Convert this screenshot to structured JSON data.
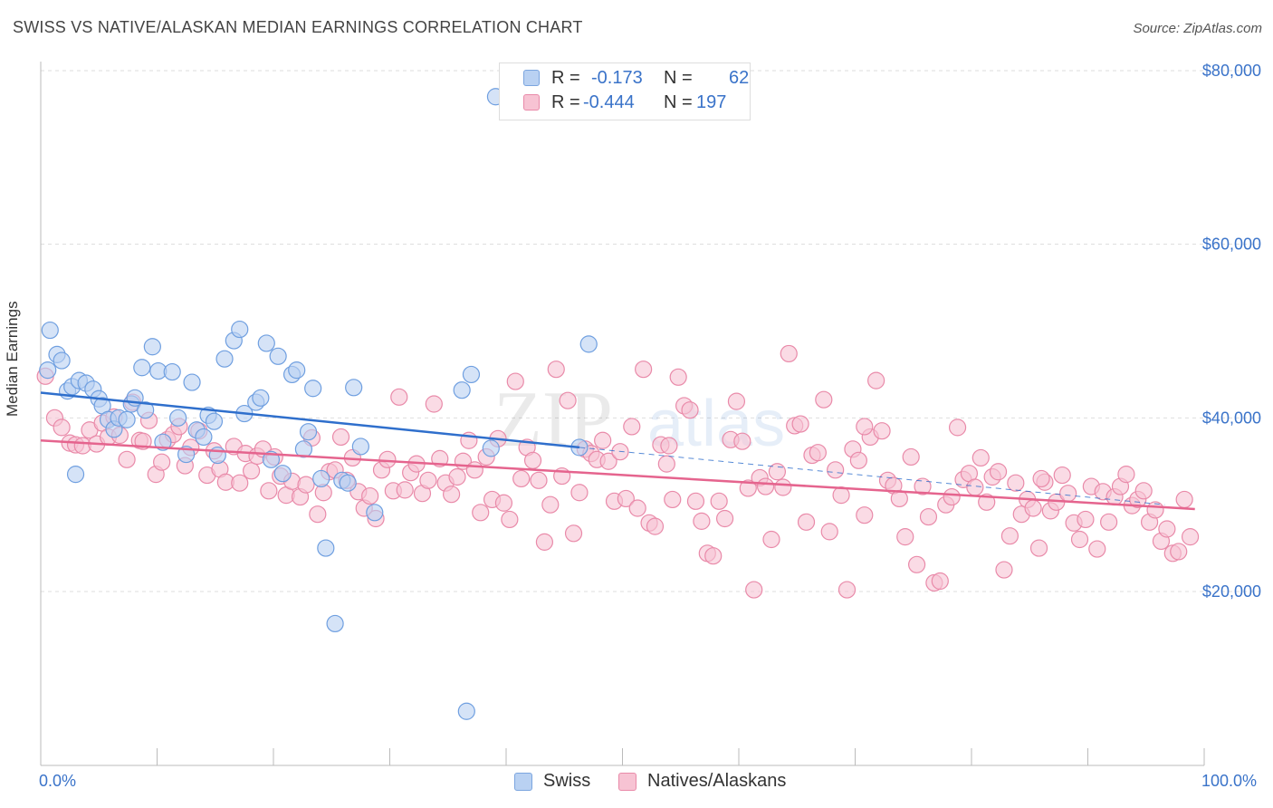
{
  "header": {
    "title": "SWISS VS NATIVE/ALASKAN MEDIAN EARNINGS CORRELATION CHART",
    "source": "Source: ZipAtlas.com"
  },
  "legend": {
    "swiss": {
      "r_label": "R =",
      "r_value": "-0.173",
      "n_label": "N =",
      "n_value": "62"
    },
    "natives": {
      "r_label": "R =",
      "r_value": "-0.444",
      "n_label": "N =",
      "n_value": "197"
    }
  },
  "bottom_legend": {
    "swiss": "Swiss",
    "natives": "Natives/Alaskans"
  },
  "colors": {
    "swiss_fill": "#b9d1f2",
    "swiss_stroke": "#6f9fe0",
    "swiss_line": "#2f6fcc",
    "natives_fill": "#f7c3d3",
    "natives_stroke": "#e98aa9",
    "natives_line": "#e5648e",
    "axis_label": "#3a73c9",
    "grid": "#dddddd"
  },
  "watermark": {
    "zip": "ZIP",
    "atlas": "atlas"
  },
  "chart_data": {
    "type": "scatter",
    "title": "SWISS VS NATIVE/ALASKAN MEDIAN EARNINGS CORRELATION CHART",
    "xlabel": "",
    "ylabel": "Median Earnings",
    "xlim": [
      0,
      100
    ],
    "ylim": [
      2000,
      82000
    ],
    "x_tick_labels": [
      "0.0%",
      "100.0%"
    ],
    "y_ticks": [
      20000,
      40000,
      60000,
      80000
    ],
    "y_tick_labels": [
      "$20,000",
      "$40,000",
      "$60,000",
      "$80,000"
    ],
    "grid": "horizontal dashed",
    "legend_position": "top-center",
    "series": [
      {
        "name": "Swiss",
        "trend": {
          "x": [
            0,
            46.3
          ],
          "y": [
            42900,
            36600
          ],
          "dashed_extension_to": [
            96.6,
            30000
          ]
        },
        "points": [
          [
            0.6,
            45500
          ],
          [
            0.8,
            50100
          ],
          [
            1.4,
            47300
          ],
          [
            1.8,
            46600
          ],
          [
            2.3,
            43100
          ],
          [
            2.7,
            43600
          ],
          [
            3.3,
            44300
          ],
          [
            3.9,
            44000
          ],
          [
            4.5,
            43300
          ],
          [
            5.0,
            42200
          ],
          [
            5.3,
            41400
          ],
          [
            5.8,
            39800
          ],
          [
            6.3,
            38700
          ],
          [
            6.7,
            40000
          ],
          [
            7.4,
            39800
          ],
          [
            7.8,
            41600
          ],
          [
            8.1,
            42300
          ],
          [
            8.7,
            45800
          ],
          [
            9.0,
            40900
          ],
          [
            9.6,
            48200
          ],
          [
            10.1,
            45400
          ],
          [
            10.5,
            37200
          ],
          [
            11.3,
            45300
          ],
          [
            11.8,
            40000
          ],
          [
            12.5,
            35800
          ],
          [
            13.0,
            44100
          ],
          [
            13.4,
            38600
          ],
          [
            14.4,
            40300
          ],
          [
            14.9,
            39600
          ],
          [
            15.2,
            35700
          ],
          [
            15.8,
            46800
          ],
          [
            16.6,
            48900
          ],
          [
            17.1,
            50200
          ],
          [
            17.5,
            40500
          ],
          [
            18.5,
            41800
          ],
          [
            18.9,
            42300
          ],
          [
            19.4,
            48600
          ],
          [
            20.4,
            47100
          ],
          [
            20.8,
            33600
          ],
          [
            21.6,
            45000
          ],
          [
            22.0,
            45500
          ],
          [
            22.6,
            36400
          ],
          [
            23.0,
            38400
          ],
          [
            23.4,
            43400
          ],
          [
            24.1,
            33000
          ],
          [
            24.5,
            25000
          ],
          [
            25.3,
            16300
          ],
          [
            25.9,
            32800
          ],
          [
            26.4,
            32500
          ],
          [
            26.9,
            43500
          ],
          [
            27.5,
            36700
          ],
          [
            28.7,
            29100
          ],
          [
            36.2,
            43200
          ],
          [
            36.6,
            6200
          ],
          [
            37.0,
            45000
          ],
          [
            38.7,
            36500
          ],
          [
            39.1,
            77000
          ],
          [
            46.3,
            36600
          ],
          [
            47.1,
            48500
          ],
          [
            19.8,
            35200
          ],
          [
            3.0,
            33500
          ],
          [
            14.0,
            37800
          ]
        ]
      },
      {
        "name": "Natives/Alaskans",
        "trend": {
          "x": [
            0,
            99.2
          ],
          "y": [
            37400,
            29500
          ]
        },
        "points": [
          [
            0.4,
            44800
          ],
          [
            1.2,
            40000
          ],
          [
            1.8,
            38900
          ],
          [
            2.5,
            37100
          ],
          [
            3.0,
            36900
          ],
          [
            3.6,
            36800
          ],
          [
            4.2,
            38600
          ],
          [
            4.8,
            37000
          ],
          [
            5.3,
            39400
          ],
          [
            5.8,
            37800
          ],
          [
            6.3,
            40100
          ],
          [
            6.8,
            38000
          ],
          [
            7.4,
            35200
          ],
          [
            7.9,
            41800
          ],
          [
            8.5,
            37400
          ],
          [
            8.8,
            37300
          ],
          [
            9.3,
            39700
          ],
          [
            9.9,
            33500
          ],
          [
            10.4,
            34900
          ],
          [
            10.9,
            37500
          ],
          [
            11.4,
            38100
          ],
          [
            11.9,
            39000
          ],
          [
            12.4,
            34500
          ],
          [
            12.9,
            36600
          ],
          [
            13.6,
            38500
          ],
          [
            14.3,
            33400
          ],
          [
            14.9,
            36200
          ],
          [
            15.4,
            34100
          ],
          [
            15.9,
            32600
          ],
          [
            16.6,
            36700
          ],
          [
            17.1,
            32500
          ],
          [
            17.6,
            35900
          ],
          [
            18.1,
            33900
          ],
          [
            18.6,
            35600
          ],
          [
            19.1,
            36400
          ],
          [
            19.6,
            31600
          ],
          [
            20.1,
            35500
          ],
          [
            20.6,
            33300
          ],
          [
            21.1,
            31100
          ],
          [
            21.6,
            32700
          ],
          [
            22.3,
            30900
          ],
          [
            22.8,
            32300
          ],
          [
            23.3,
            37700
          ],
          [
            23.8,
            28900
          ],
          [
            24.3,
            31400
          ],
          [
            24.8,
            33800
          ],
          [
            25.3,
            34000
          ],
          [
            25.8,
            37800
          ],
          [
            26.3,
            32800
          ],
          [
            26.8,
            35400
          ],
          [
            27.3,
            31500
          ],
          [
            27.8,
            29600
          ],
          [
            28.3,
            31000
          ],
          [
            28.8,
            28400
          ],
          [
            29.3,
            34000
          ],
          [
            29.8,
            35200
          ],
          [
            30.3,
            31600
          ],
          [
            30.8,
            42400
          ],
          [
            31.3,
            31700
          ],
          [
            31.8,
            33700
          ],
          [
            32.3,
            34700
          ],
          [
            32.8,
            31300
          ],
          [
            33.3,
            32800
          ],
          [
            33.8,
            41600
          ],
          [
            34.3,
            35300
          ],
          [
            34.8,
            32500
          ],
          [
            35.3,
            31200
          ],
          [
            35.8,
            33200
          ],
          [
            36.3,
            35000
          ],
          [
            36.8,
            37400
          ],
          [
            37.3,
            34000
          ],
          [
            37.8,
            29100
          ],
          [
            38.3,
            35500
          ],
          [
            38.8,
            30600
          ],
          [
            39.3,
            37600
          ],
          [
            39.8,
            30200
          ],
          [
            40.3,
            28300
          ],
          [
            40.8,
            44200
          ],
          [
            41.3,
            33000
          ],
          [
            41.8,
            36600
          ],
          [
            42.3,
            35100
          ],
          [
            42.8,
            32800
          ],
          [
            43.3,
            25700
          ],
          [
            43.8,
            30000
          ],
          [
            44.3,
            45600
          ],
          [
            44.8,
            33300
          ],
          [
            45.3,
            42000
          ],
          [
            45.8,
            26700
          ],
          [
            46.3,
            31400
          ],
          [
            46.8,
            36400
          ],
          [
            47.3,
            35900
          ],
          [
            47.8,
            35200
          ],
          [
            48.3,
            37400
          ],
          [
            48.8,
            35000
          ],
          [
            49.3,
            30400
          ],
          [
            49.8,
            36100
          ],
          [
            50.3,
            30700
          ],
          [
            50.8,
            39000
          ],
          [
            51.3,
            29600
          ],
          [
            51.8,
            45600
          ],
          [
            52.3,
            27900
          ],
          [
            52.8,
            27500
          ],
          [
            53.3,
            36900
          ],
          [
            53.8,
            34700
          ],
          [
            54.3,
            30600
          ],
          [
            54.8,
            44700
          ],
          [
            55.3,
            41400
          ],
          [
            55.8,
            40900
          ],
          [
            56.3,
            30400
          ],
          [
            56.8,
            28100
          ],
          [
            57.3,
            24400
          ],
          [
            57.8,
            24100
          ],
          [
            58.3,
            30400
          ],
          [
            58.8,
            28400
          ],
          [
            59.3,
            37500
          ],
          [
            59.8,
            41900
          ],
          [
            60.3,
            37300
          ],
          [
            60.8,
            31900
          ],
          [
            61.3,
            20200
          ],
          [
            61.8,
            33100
          ],
          [
            62.3,
            32100
          ],
          [
            62.8,
            26000
          ],
          [
            63.3,
            33800
          ],
          [
            63.8,
            32000
          ],
          [
            64.3,
            47400
          ],
          [
            64.8,
            39100
          ],
          [
            65.3,
            39300
          ],
          [
            65.8,
            28000
          ],
          [
            66.3,
            35700
          ],
          [
            66.8,
            36000
          ],
          [
            67.3,
            42100
          ],
          [
            67.8,
            26900
          ],
          [
            68.3,
            34000
          ],
          [
            68.8,
            31100
          ],
          [
            69.3,
            20200
          ],
          [
            69.8,
            36400
          ],
          [
            70.3,
            35100
          ],
          [
            70.8,
            28800
          ],
          [
            71.3,
            37800
          ],
          [
            71.8,
            44300
          ],
          [
            72.3,
            38500
          ],
          [
            72.8,
            32800
          ],
          [
            73.3,
            32200
          ],
          [
            73.8,
            30700
          ],
          [
            74.3,
            26300
          ],
          [
            74.8,
            35500
          ],
          [
            75.3,
            23100
          ],
          [
            75.8,
            32100
          ],
          [
            76.3,
            28600
          ],
          [
            76.8,
            21000
          ],
          [
            77.3,
            21200
          ],
          [
            77.8,
            30000
          ],
          [
            78.3,
            30900
          ],
          [
            78.8,
            38900
          ],
          [
            79.3,
            32900
          ],
          [
            79.8,
            33600
          ],
          [
            80.3,
            32000
          ],
          [
            80.8,
            35400
          ],
          [
            81.3,
            30300
          ],
          [
            81.8,
            33200
          ],
          [
            82.3,
            33800
          ],
          [
            82.8,
            22500
          ],
          [
            83.3,
            26400
          ],
          [
            83.8,
            32500
          ],
          [
            84.3,
            28900
          ],
          [
            84.8,
            30600
          ],
          [
            85.3,
            29600
          ],
          [
            85.8,
            25000
          ],
          [
            86.3,
            32600
          ],
          [
            86.8,
            29300
          ],
          [
            87.3,
            30300
          ],
          [
            87.8,
            33400
          ],
          [
            88.3,
            31300
          ],
          [
            88.8,
            27900
          ],
          [
            89.3,
            26000
          ],
          [
            89.8,
            28300
          ],
          [
            90.3,
            32100
          ],
          [
            90.8,
            24900
          ],
          [
            91.3,
            31500
          ],
          [
            91.8,
            28000
          ],
          [
            92.3,
            30900
          ],
          [
            92.8,
            32100
          ],
          [
            93.3,
            33500
          ],
          [
            93.8,
            29900
          ],
          [
            94.3,
            30600
          ],
          [
            94.8,
            31600
          ],
          [
            95.3,
            28000
          ],
          [
            95.8,
            29400
          ],
          [
            96.3,
            25800
          ],
          [
            96.8,
            27200
          ],
          [
            97.3,
            24400
          ],
          [
            97.8,
            24600
          ],
          [
            98.3,
            30600
          ],
          [
            98.8,
            26300
          ],
          [
            70.8,
            39000
          ],
          [
            54.0,
            36800
          ],
          [
            86.0,
            33000
          ]
        ]
      }
    ]
  }
}
